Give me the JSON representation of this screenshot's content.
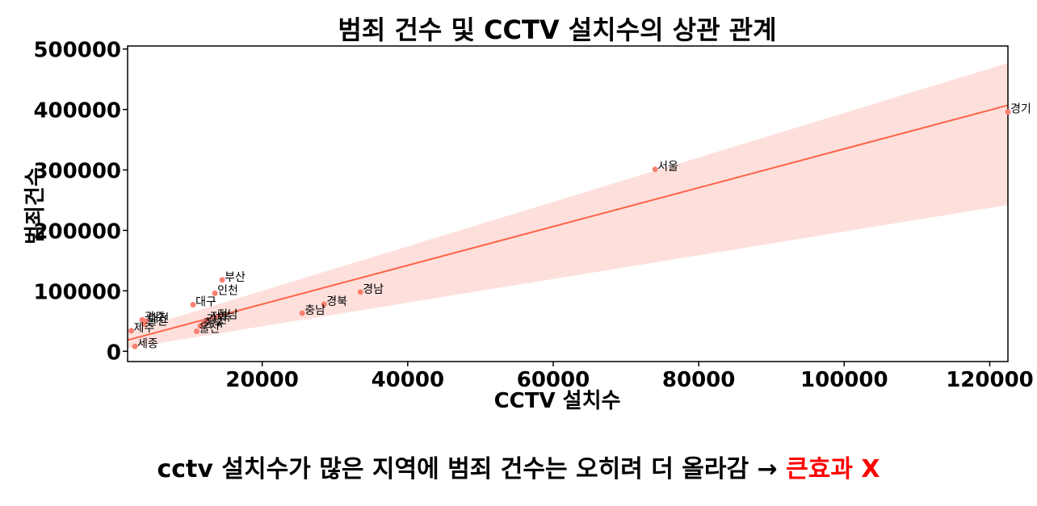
{
  "chart_data": {
    "type": "scatter",
    "title": "범죄 건수 및 CCTV 설치수의 상관 관계",
    "xlabel": "CCTV 설치수",
    "ylabel": "범죄건수",
    "xlim": [
      1500,
      122500
    ],
    "ylim": [
      -17000,
      505000
    ],
    "xticks": [
      20000,
      40000,
      60000,
      80000,
      100000,
      120000
    ],
    "yticks": [
      0,
      100000,
      200000,
      300000,
      400000,
      500000
    ],
    "xtick_labels": [
      "20000",
      "40000",
      "60000",
      "80000",
      "100000",
      "120000"
    ],
    "ytick_labels": [
      "0",
      "100000",
      "200000",
      "300000",
      "400000",
      "500000"
    ],
    "point_color": "#fa8072",
    "line_color": "#ff6347",
    "band_color": "#fde0dc",
    "regression": {
      "x": [
        1500,
        122500
      ],
      "y": [
        18500,
        407000
      ],
      "ci_lower": [
        5000,
        242000
      ],
      "ci_upper": [
        32000,
        477000
      ]
    },
    "points": [
      {
        "label": "경기",
        "x": 122500,
        "y": 396000
      },
      {
        "label": "서울",
        "x": 74000,
        "y": 301000
      },
      {
        "label": "부산",
        "x": 14500,
        "y": 118000
      },
      {
        "label": "인천",
        "x": 13500,
        "y": 96000
      },
      {
        "label": "대구",
        "x": 10500,
        "y": 77000
      },
      {
        "label": "경남",
        "x": 33500,
        "y": 98000
      },
      {
        "label": "경북",
        "x": 28500,
        "y": 78000
      },
      {
        "label": "충남",
        "x": 25500,
        "y": 63000
      },
      {
        "label": "광주",
        "x": 3500,
        "y": 52000
      },
      {
        "label": "대전",
        "x": 4000,
        "y": 50000
      },
      {
        "label": "울산",
        "x": 3800,
        "y": 45000
      },
      {
        "label": "제주",
        "x": 2000,
        "y": 34000
      },
      {
        "label": "세종",
        "x": 2500,
        "y": 8000
      },
      {
        "label": "전남",
        "x": 13500,
        "y": 56000
      },
      {
        "label": "전북",
        "x": 12500,
        "y": 52000
      },
      {
        "label": "강원",
        "x": 12000,
        "y": 48000
      },
      {
        "label": "충북",
        "x": 11500,
        "y": 42000
      },
      {
        "label": "울산",
        "x": 11000,
        "y": 33000
      }
    ]
  },
  "caption": {
    "text": "cctv 설치수가 많은 지역에  범죄 건수는 오히려 더 올라감 → ",
    "highlight": "큰효과  X",
    "highlight_color": "#ff0000"
  }
}
